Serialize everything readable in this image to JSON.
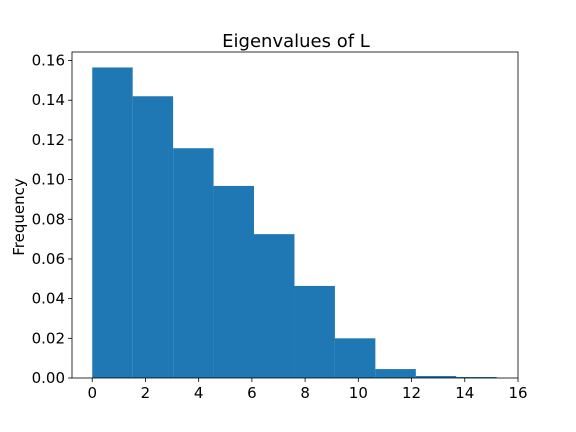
{
  "chart_data": {
    "type": "bar",
    "title": "Eigenvalues of L",
    "xlabel": "",
    "ylabel": "Frequency",
    "bin_edges": [
      0.0,
      1.52,
      3.04,
      4.56,
      6.08,
      7.6,
      9.12,
      10.64,
      12.16,
      13.68,
      15.2
    ],
    "values": [
      0.1565,
      0.142,
      0.1158,
      0.0968,
      0.0725,
      0.0464,
      0.02,
      0.0045,
      0.001,
      0.0005
    ],
    "xlim": [
      -0.76,
      16.0
    ],
    "ylim": [
      0.0,
      0.1643
    ],
    "xticks": [
      0,
      2,
      4,
      6,
      8,
      10,
      12,
      14,
      16
    ],
    "yticks": [
      "0.00",
      "0.02",
      "0.04",
      "0.06",
      "0.08",
      "0.10",
      "0.12",
      "0.14",
      "0.16"
    ],
    "grid": false,
    "bar_color": "#1f77b4"
  }
}
